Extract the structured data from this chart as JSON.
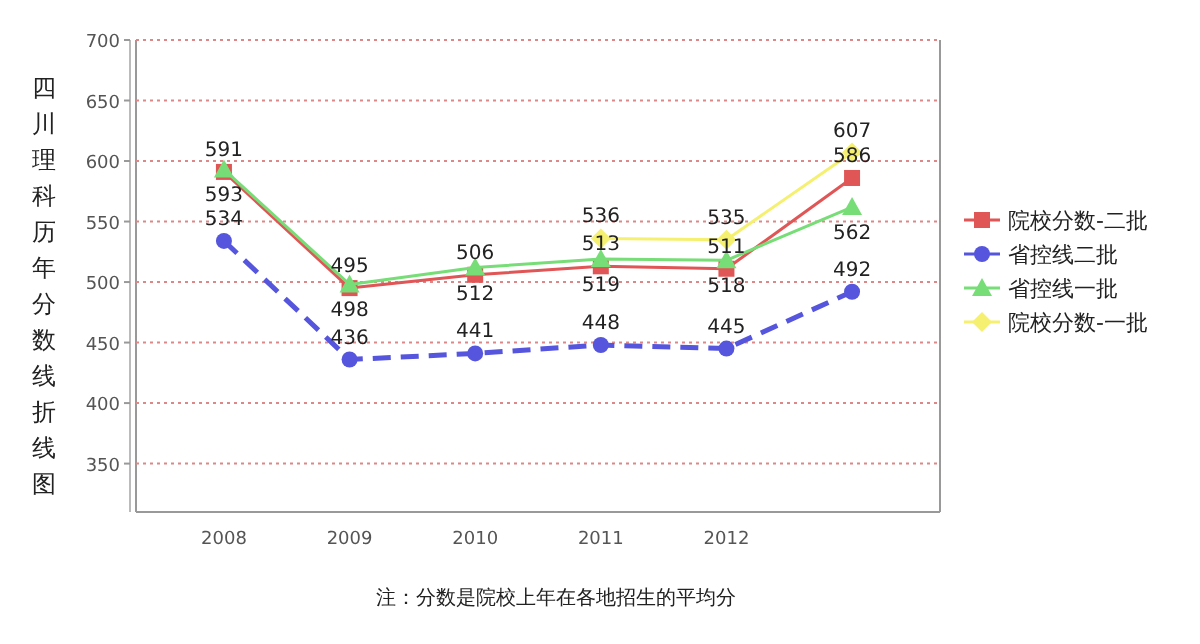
{
  "chart_data": {
    "type": "line",
    "title": "四川理科历年分数线折线图",
    "categories": [
      "2008",
      "2009",
      "2010",
      "2011",
      "2012",
      null
    ],
    "series": [
      {
        "name": "院校分数-二批",
        "color": "#e05555",
        "marker": "square",
        "line_style": "solid",
        "values": [
          591,
          495,
          506,
          513,
          511,
          586
        ]
      },
      {
        "name": "省控线二批",
        "color": "#5555dd",
        "marker": "circle",
        "line_style": "dashed",
        "values": [
          534,
          436,
          441,
          448,
          445,
          492
        ]
      },
      {
        "name": "省控线一批",
        "color": "#77dd77",
        "marker": "triangle",
        "line_style": "solid",
        "values": [
          593,
          498,
          512,
          519,
          518,
          562
        ]
      },
      {
        "name": "院校分数-一批",
        "color": "#f5f070",
        "marker": "diamond",
        "line_style": "solid",
        "values": [
          null,
          null,
          null,
          536,
          535,
          607
        ]
      }
    ],
    "ylim": [
      310,
      700
    ],
    "yticks": [
      350,
      400,
      450,
      500,
      550,
      600,
      650,
      700
    ],
    "grid": "y",
    "legend": "right",
    "data_labels": true,
    "annotations": [
      "注：分数是院校上年在各地招生的平均分"
    ]
  }
}
